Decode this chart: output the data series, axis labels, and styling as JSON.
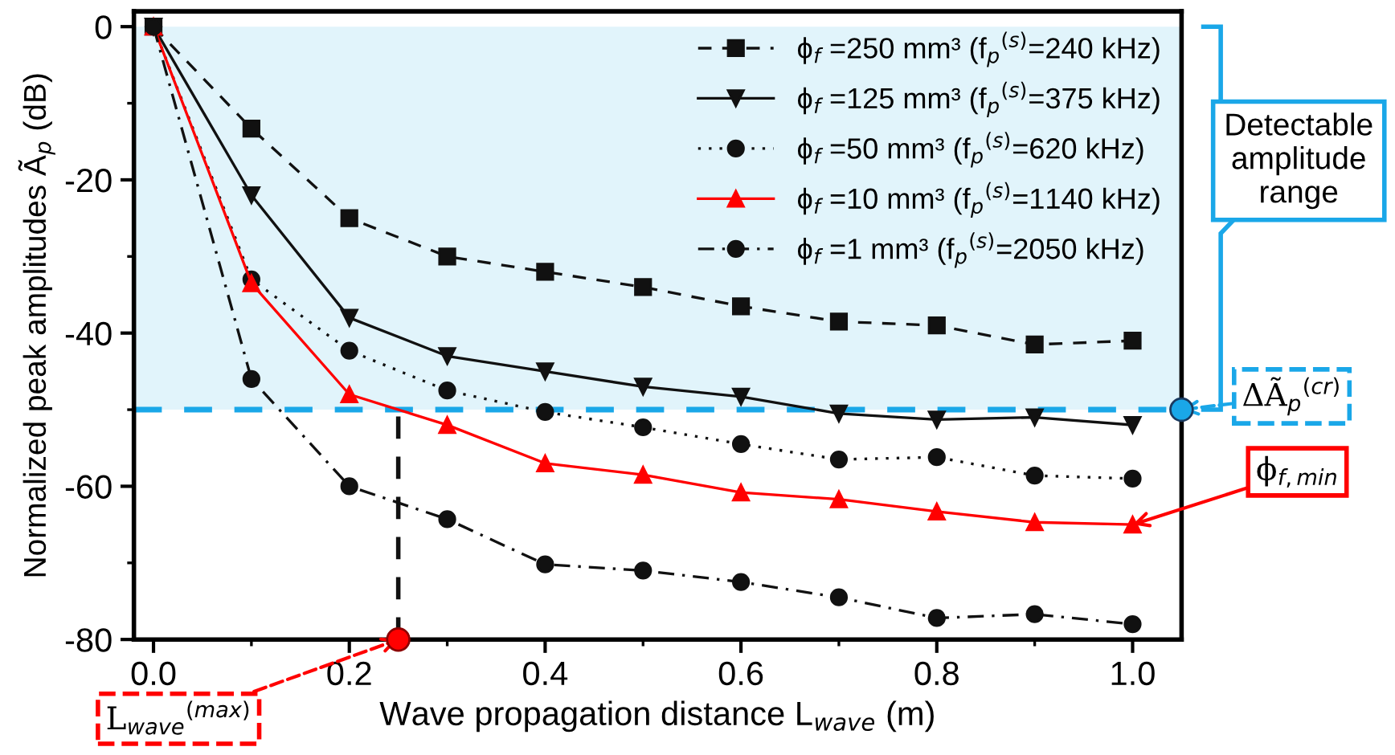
{
  "chart_data": {
    "type": "line",
    "xlabel": "Wave propagation distance L$_{wave}$ (m)",
    "ylabel": "Normalized peak amplitudes Ã$_{p}$ (dB)",
    "x": [
      0,
      0.1,
      0.2,
      0.3,
      0.4,
      0.5,
      0.6,
      0.7,
      0.8,
      0.9,
      1.0
    ],
    "series": [
      {
        "name": "ϕ$_{f}$ =250 mm³ (f$_{p}$$^{(s)}$=240 kHz)",
        "color": "#111111",
        "marker": "square",
        "line_style": "dashed",
        "values": [
          0,
          -13.3,
          -25,
          -30,
          -32,
          -34,
          -36.5,
          -38.5,
          -39,
          -41.5,
          -41
        ]
      },
      {
        "name": "ϕ$_{f}$ =125 mm³ (f$_{p}$$^{(s)}$=375 kHz)",
        "color": "#111111",
        "marker": "triangle_down",
        "line_style": "solid",
        "values": [
          0,
          -22,
          -38,
          -43,
          -45,
          -47,
          -48.3,
          -50.5,
          -51.3,
          -51,
          -52
        ]
      },
      {
        "name": "ϕ$_{f}$ =50 mm³ (f$_{p}$$^{(s)}$=620 kHz)",
        "color": "#111111",
        "marker": "circle",
        "line_style": "dotted",
        "values": [
          0,
          -33,
          -42.3,
          -47.5,
          -50.3,
          -52.3,
          -54.5,
          -56.5,
          -56.2,
          -58.6,
          -59
        ]
      },
      {
        "name": "ϕ$_{f}$ =10 mm³ (f$_{p}$$^{(s)}$=1140 kHz)",
        "color": "#ff0000",
        "marker": "triangle",
        "line_style": "solid",
        "values": [
          0,
          -33.5,
          -48,
          -52,
          -57,
          -58.5,
          -60.8,
          -61.7,
          -63.3,
          -64.7,
          -65
        ]
      },
      {
        "name": "ϕ$_{f}$ =1 mm³ (f$_{p}$$^{(s)}$=2050 kHz)",
        "color": "#111111",
        "marker": "circle",
        "line_style": "dashdot",
        "values": [
          0,
          -46,
          -60,
          -64.3,
          -70.2,
          -71,
          -72.5,
          -74.5,
          -77.2,
          -76.7,
          -78
        ]
      }
    ],
    "xlim": [
      -0.02,
      1.05
    ],
    "ylim": [
      -80,
      2
    ],
    "xticks": [
      {
        "value": 0,
        "label": "0.0"
      },
      0.2,
      0.4,
      0.6,
      0.8,
      {
        "value": 1.0,
        "label": "1.0"
      }
    ],
    "yticks": [
      0,
      -20,
      -40,
      -60,
      -80
    ],
    "ref_lines": [
      {
        "axis": "y",
        "value": -50,
        "color": "#1aa7e8",
        "line_style": "dashed"
      },
      {
        "axis": "x",
        "value": 0.25,
        "color": "#111111",
        "line_style": "dashed"
      }
    ],
    "bands": [
      {
        "axis": "y",
        "from": -50,
        "to": 0,
        "color": "#e1f4fb"
      }
    ],
    "annotations": [
      "Detectable amplitude range",
      {
        "text": "ΔÃ$_{p}$$^{(cr)}$",
        "x": 1.05,
        "y": -50
      },
      {
        "text": "ϕ$_{f,min}$",
        "x": 1.0,
        "y": -65
      },
      {
        "text": "L$_{wave}$$^{(max)}$",
        "x": 0.25,
        "y": -80
      }
    ],
    "grid": false,
    "legend": "top right"
  }
}
